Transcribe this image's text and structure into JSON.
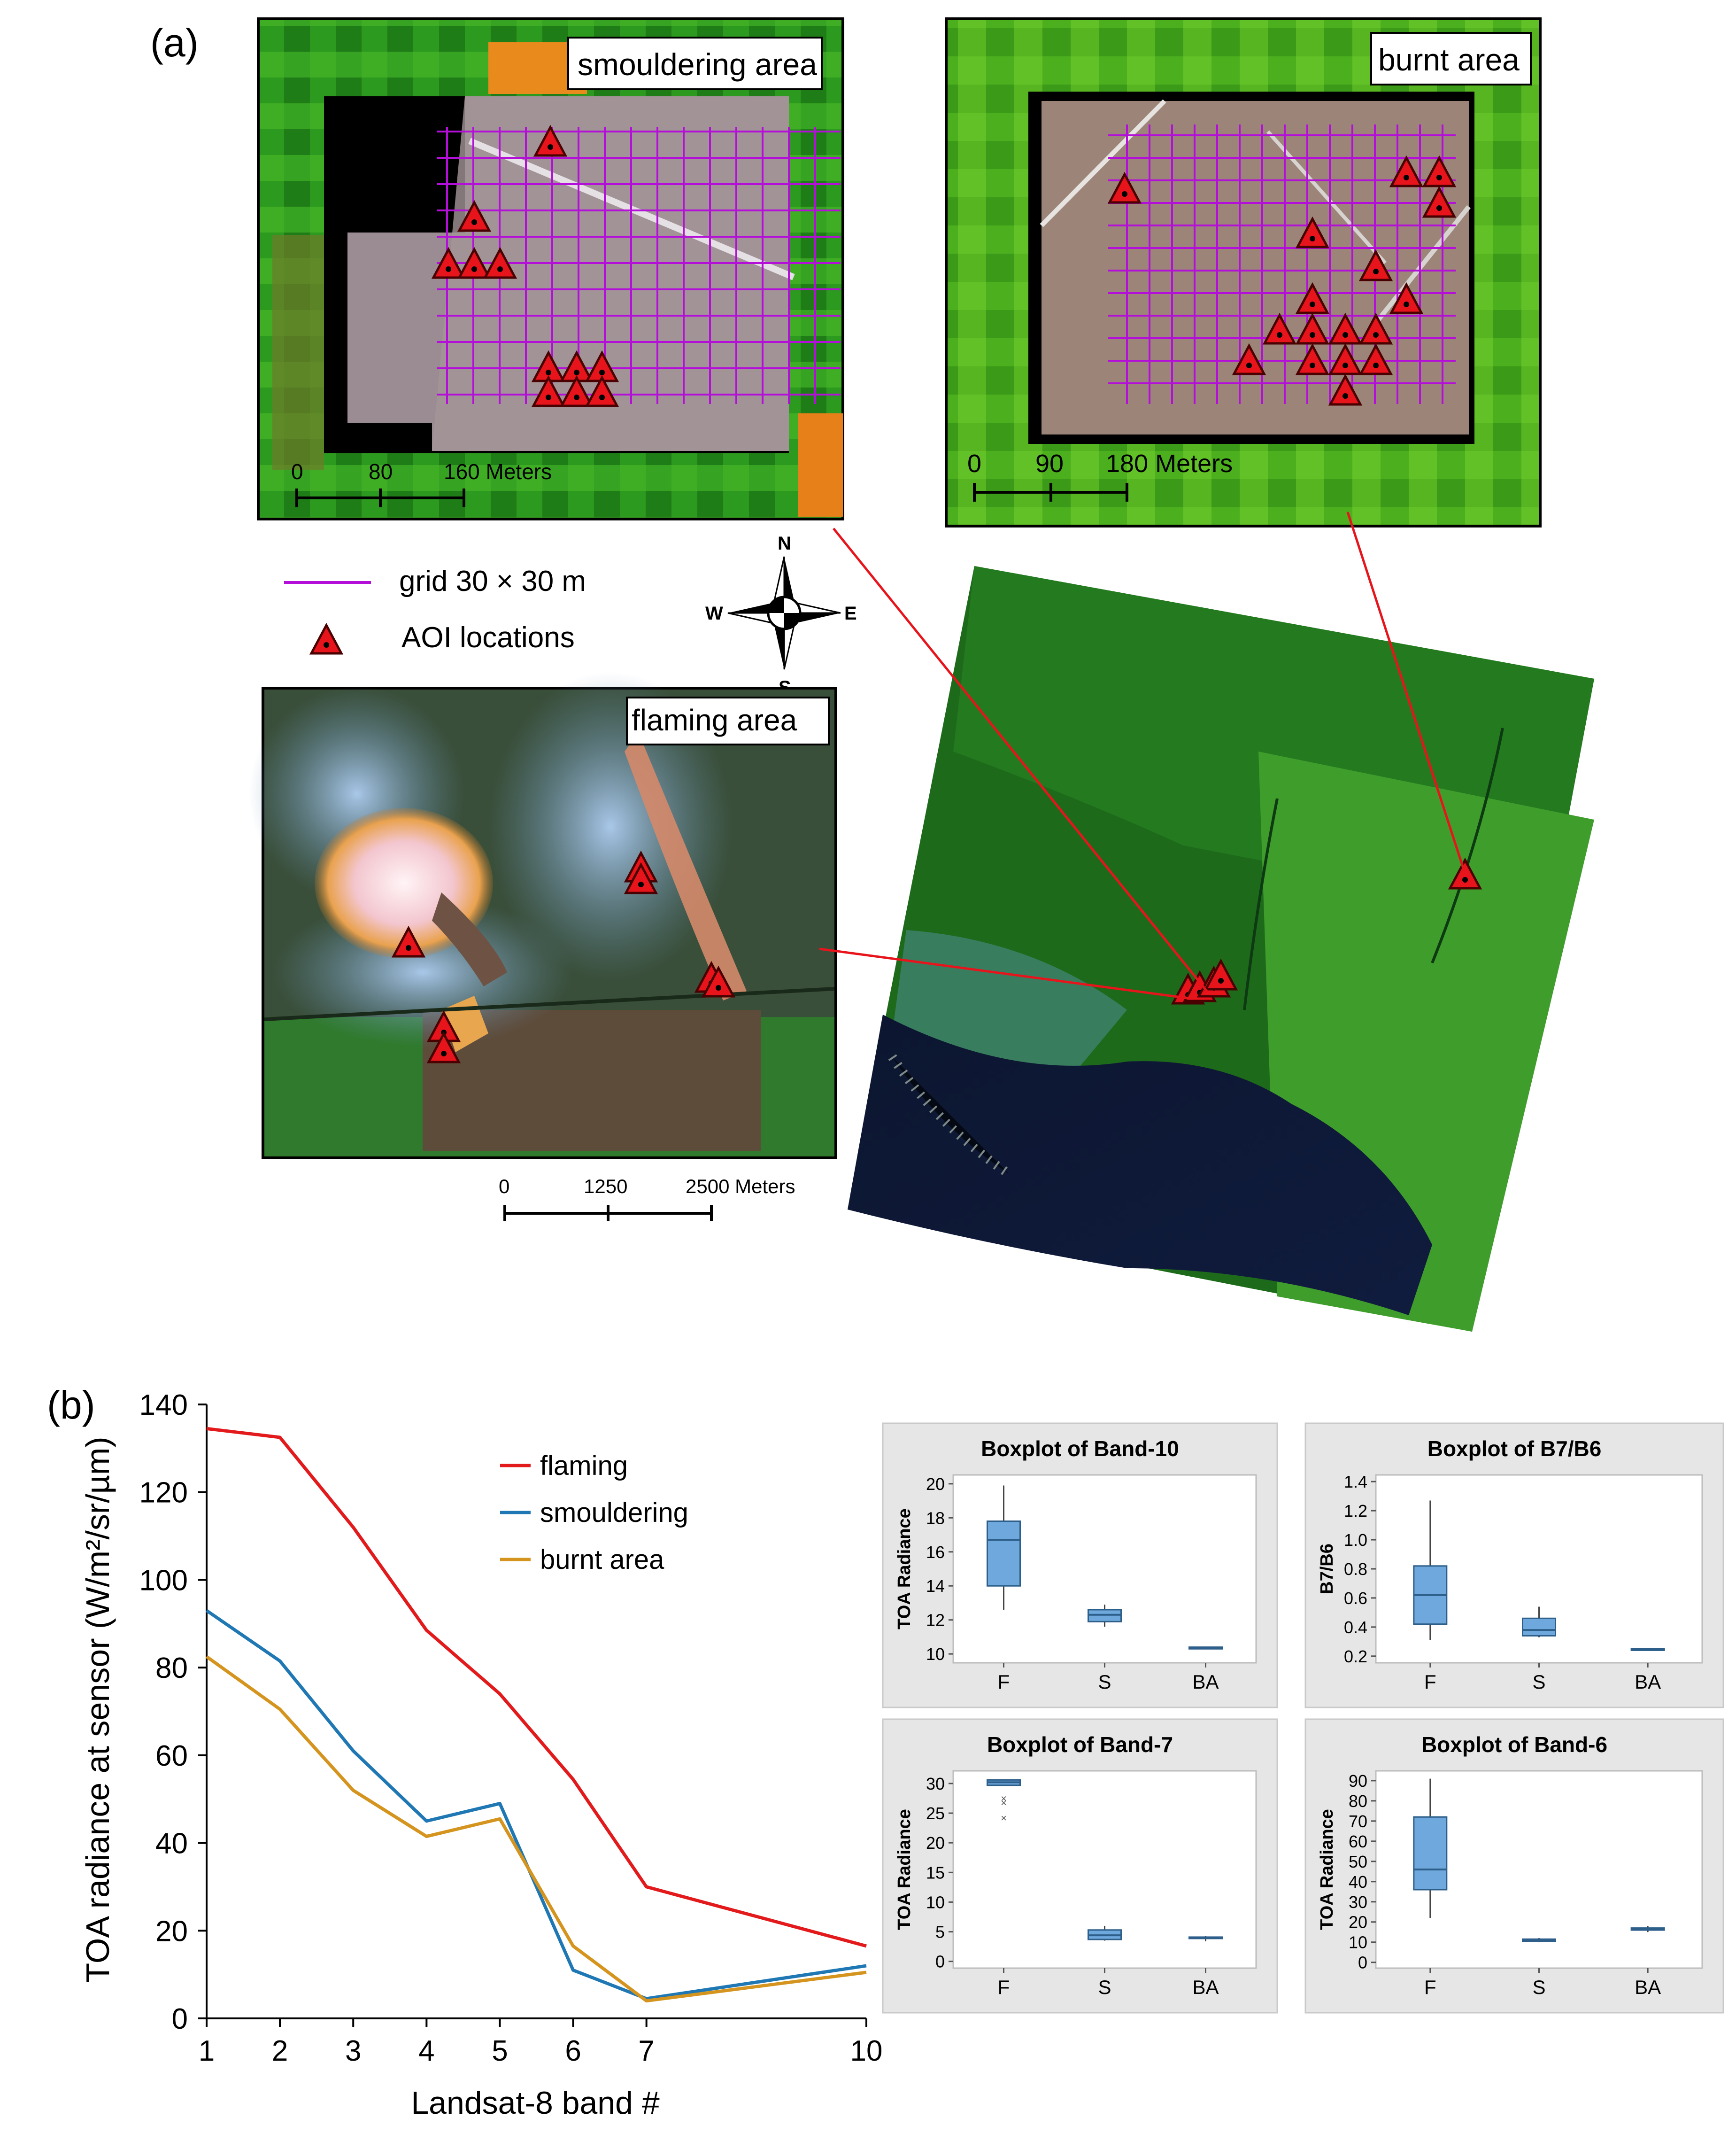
{
  "panel_a": {
    "label": "(a)",
    "insets": {
      "smouldering": {
        "title": "smouldering area",
        "scale_ticks": [
          "0",
          "80",
          "160 Meters"
        ]
      },
      "burnt": {
        "title": "burnt area",
        "scale_ticks": [
          "0",
          "90",
          "180 Meters"
        ]
      },
      "flaming": {
        "title": "flaming area",
        "scale_ticks": [
          "0",
          "1250",
          "2500 Meters"
        ]
      }
    },
    "legend": {
      "grid": "grid 30 × 30 m",
      "aoi": "AOI locations"
    },
    "compass": {
      "n": "N",
      "s": "S",
      "e": "E",
      "w": "W"
    }
  },
  "panel_b": {
    "label": "(b)"
  },
  "colors": {
    "flaming": "#e31a1c",
    "smouldering": "#1f78b4",
    "burnt": "#d4941e",
    "box_fill": "#6fa8dc",
    "box_stroke": "#2d5f8a",
    "grid": "#b40fd9",
    "aoi": "#e8141c"
  },
  "chart_data": [
    {
      "type": "line",
      "title": "",
      "xlabel": "Landsat-8 band #",
      "ylabel": "TOA radiance at sensor (W/m²/sr/µm)",
      "x": [
        1,
        2,
        3,
        4,
        5,
        6,
        7,
        10
      ],
      "x_ticks": [
        "1",
        "2",
        "3",
        "4",
        "5",
        "6",
        "7",
        "10"
      ],
      "y_ticks": [
        "0",
        "20",
        "40",
        "60",
        "80",
        "100",
        "120",
        "140"
      ],
      "ylim": [
        0,
        140
      ],
      "legend_position": "top-center",
      "series": [
        {
          "name": "flaming",
          "color_key": "flaming",
          "values": [
            134.5,
            132.5,
            112,
            88.5,
            74,
            54.5,
            30,
            16.5
          ]
        },
        {
          "name": "smouldering",
          "color_key": "smouldering",
          "values": [
            93,
            81.5,
            61,
            45,
            49,
            11,
            4.5,
            12
          ]
        },
        {
          "name": "burnt area",
          "color_key": "burnt",
          "values": [
            82.5,
            70.5,
            52,
            41.5,
            45.5,
            16.5,
            4,
            10.5
          ]
        }
      ]
    },
    {
      "type": "boxplot",
      "title": "Boxplot of Band-10",
      "ylabel": "TOA Radiance",
      "categories": [
        "F",
        "S",
        "BA"
      ],
      "y_ticks": [
        "10",
        "12",
        "14",
        "16",
        "18",
        "20"
      ],
      "ylim": [
        9.7,
        20.3
      ],
      "boxes": [
        {
          "category": "F",
          "min": 12.6,
          "q1": 14.0,
          "median": 16.7,
          "q3": 17.8,
          "max": 19.9
        },
        {
          "category": "S",
          "min": 11.6,
          "q1": 11.9,
          "median": 12.3,
          "q3": 12.6,
          "max": 12.9
        },
        {
          "category": "BA",
          "min": 10.3,
          "q1": 10.3,
          "median": 10.35,
          "q3": 10.4,
          "max": 10.4
        }
      ]
    },
    {
      "type": "boxplot",
      "title": "Boxplot of B7/B6",
      "ylabel": "B7/B6",
      "categories": [
        "F",
        "S",
        "BA"
      ],
      "y_ticks": [
        "0.2",
        "0.4",
        "0.6",
        "0.8",
        "1.0",
        "1.2",
        "1.4"
      ],
      "ylim": [
        0.18,
        1.42
      ],
      "boxes": [
        {
          "category": "F",
          "min": 0.31,
          "q1": 0.42,
          "median": 0.62,
          "q3": 0.82,
          "max": 1.27
        },
        {
          "category": "S",
          "min": 0.33,
          "q1": 0.34,
          "median": 0.38,
          "q3": 0.46,
          "max": 0.54
        },
        {
          "category": "BA",
          "min": 0.24,
          "q1": 0.24,
          "median": 0.245,
          "q3": 0.25,
          "max": 0.25
        }
      ]
    },
    {
      "type": "boxplot",
      "title": "Boxplot of Band-7",
      "ylabel": "TOA Radiance",
      "categories": [
        "F",
        "S",
        "BA"
      ],
      "y_ticks": [
        "0",
        "5",
        "10",
        "15",
        "20",
        "25",
        "30"
      ],
      "ylim": [
        -0.5,
        31.5
      ],
      "boxes": [
        {
          "category": "F",
          "min": 29.7,
          "q1": 29.7,
          "median": 30.2,
          "q3": 30.6,
          "max": 30.6,
          "outliers": [
            27.5,
            26.8,
            24.2
          ]
        },
        {
          "category": "S",
          "min": 3.5,
          "q1": 3.7,
          "median": 4.4,
          "q3": 5.3,
          "max": 6.0
        },
        {
          "category": "BA",
          "min": 3.4,
          "q1": 3.9,
          "median": 4.0,
          "q3": 4.1,
          "max": 4.3
        }
      ]
    },
    {
      "type": "boxplot",
      "title": "Boxplot of Band-6",
      "ylabel": "TOA Radiance",
      "categories": [
        "F",
        "S",
        "BA"
      ],
      "y_ticks": [
        "0",
        "10",
        "20",
        "30",
        "40",
        "50",
        "60",
        "70",
        "80",
        "90"
      ],
      "ylim": [
        -1,
        93
      ],
      "boxes": [
        {
          "category": "F",
          "min": 22,
          "q1": 36,
          "median": 46,
          "q3": 72,
          "max": 91
        },
        {
          "category": "S",
          "min": 10,
          "q1": 10.5,
          "median": 11,
          "q3": 11.5,
          "max": 12
        },
        {
          "category": "BA",
          "min": 15,
          "q1": 16,
          "median": 16.5,
          "q3": 17,
          "max": 18
        }
      ]
    }
  ]
}
